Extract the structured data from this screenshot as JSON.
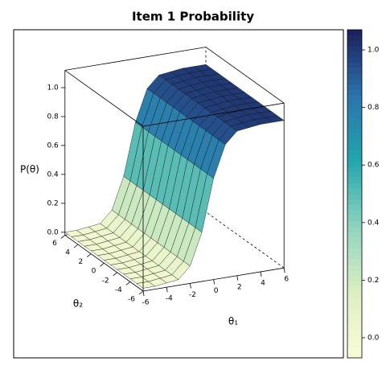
{
  "chart_data": {
    "type": "surface",
    "title": "Item 1 Probability",
    "zlabel": "P(θ)",
    "xlabel": "θ₁",
    "ylabel": "θ₂",
    "x": [
      -6,
      -5,
      -4,
      -3,
      -2,
      -1,
      0,
      1,
      2,
      3,
      4,
      5,
      6
    ],
    "y": [
      -6,
      -5,
      -4,
      -3,
      -2,
      -1,
      0,
      1,
      2,
      3,
      4,
      5,
      6
    ],
    "z": [
      [
        0,
        0,
        0.01,
        0.02,
        0.1,
        0.32,
        0.68,
        0.9,
        0.98,
        0.99,
        1,
        1,
        1
      ],
      [
        0,
        0,
        0.01,
        0.02,
        0.1,
        0.32,
        0.68,
        0.9,
        0.98,
        0.99,
        1,
        1,
        1
      ],
      [
        0,
        0,
        0.01,
        0.02,
        0.1,
        0.32,
        0.68,
        0.9,
        0.98,
        0.99,
        1,
        1,
        1
      ],
      [
        0,
        0,
        0.01,
        0.02,
        0.1,
        0.32,
        0.68,
        0.9,
        0.98,
        0.99,
        1,
        1,
        1
      ],
      [
        0,
        0,
        0.01,
        0.02,
        0.1,
        0.32,
        0.68,
        0.9,
        0.98,
        0.99,
        1,
        1,
        1
      ],
      [
        0,
        0,
        0.01,
        0.02,
        0.1,
        0.32,
        0.68,
        0.9,
        0.98,
        0.99,
        1,
        1,
        1
      ],
      [
        0,
        0,
        0.01,
        0.02,
        0.1,
        0.32,
        0.68,
        0.9,
        0.98,
        0.99,
        1,
        1,
        1
      ],
      [
        0,
        0,
        0.01,
        0.02,
        0.1,
        0.32,
        0.68,
        0.9,
        0.98,
        0.99,
        1,
        1,
        1
      ],
      [
        0,
        0,
        0.01,
        0.02,
        0.1,
        0.32,
        0.68,
        0.9,
        0.98,
        0.99,
        1,
        1,
        1
      ],
      [
        0,
        0,
        0.01,
        0.02,
        0.1,
        0.32,
        0.68,
        0.9,
        0.98,
        0.99,
        1,
        1,
        1
      ],
      [
        0,
        0,
        0.01,
        0.02,
        0.1,
        0.32,
        0.68,
        0.9,
        0.98,
        0.99,
        1,
        1,
        1
      ],
      [
        0,
        0,
        0.01,
        0.02,
        0.1,
        0.32,
        0.68,
        0.9,
        0.98,
        0.99,
        1,
        1,
        1
      ],
      [
        0,
        0,
        0.01,
        0.02,
        0.1,
        0.32,
        0.68,
        0.9,
        0.98,
        0.99,
        1,
        1,
        1
      ]
    ],
    "xlim": [
      -6,
      6
    ],
    "ylim": [
      -6,
      6
    ],
    "zlim": [
      -0.02,
      1.12
    ],
    "xticks": [
      -6,
      -4,
      -2,
      0,
      2,
      4,
      6
    ],
    "yticks": [
      -6,
      -4,
      -2,
      0,
      2,
      4,
      6
    ],
    "zticks": [
      {
        "value": 0,
        "label": "0.0"
      },
      {
        "value": 0.2,
        "label": "0.2"
      },
      {
        "value": 0.4,
        "label": "0.4"
      },
      {
        "value": 0.6,
        "label": "0.6"
      },
      {
        "value": 0.8,
        "label": "0.8"
      },
      {
        "value": 1,
        "label": "1.0"
      }
    ],
    "colorbar_lim": [
      -0.07,
      1.07
    ],
    "colorbar_ticks": [
      {
        "value": 0,
        "label": "0.0"
      },
      {
        "value": 0.2,
        "label": "0.2"
      },
      {
        "value": 0.4,
        "label": "0.4"
      },
      {
        "value": 0.6,
        "label": "0.6"
      },
      {
        "value": 0.8,
        "label": "0.8"
      },
      {
        "value": 1,
        "label": "1.0"
      }
    ],
    "colorscale": [
      "#fbfbd6",
      "#dcf0c2",
      "#8fd3bf",
      "#22a6ad",
      "#2c73ad",
      "#1b1f5c"
    ]
  }
}
